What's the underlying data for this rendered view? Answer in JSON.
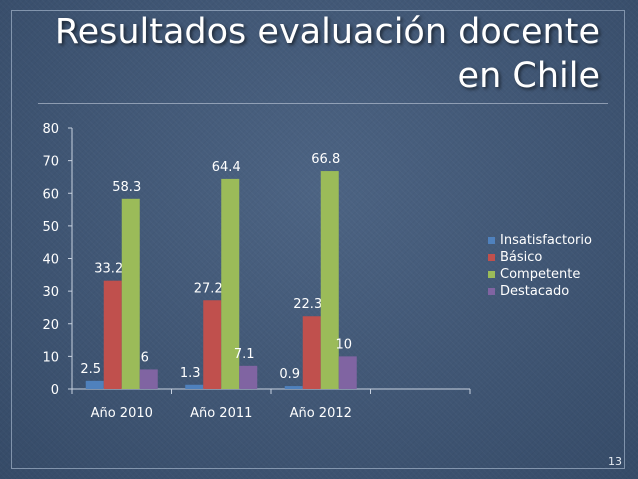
{
  "slide": {
    "title_line1": "Resultados evaluación docente",
    "title_line2": "en Chile",
    "page_number": "13"
  },
  "chart_data": {
    "type": "bar",
    "categories": [
      "Año 2010",
      "Año 2011",
      "Año 2012",
      ""
    ],
    "series": [
      {
        "name": "Insatisfactorio",
        "values": [
          2.5,
          1.3,
          0.9,
          null
        ],
        "labels": [
          "2.5",
          "1.3",
          "0.9",
          ""
        ],
        "color": "#4f81bd"
      },
      {
        "name": "Básico",
        "values": [
          33.2,
          27.2,
          22.3,
          null
        ],
        "labels": [
          "33.2",
          "27.2",
          "22.3",
          ""
        ],
        "color": "#c0504d"
      },
      {
        "name": "Competente",
        "values": [
          58.3,
          64.4,
          66.8,
          null
        ],
        "labels": [
          "58.3",
          "64.4",
          "66.8",
          ""
        ],
        "color": "#9bbb59"
      },
      {
        "name": "Destacado",
        "values": [
          6,
          7.1,
          10,
          null
        ],
        "labels": [
          "6",
          "7.1",
          "10",
          ""
        ],
        "color": "#8064a2"
      }
    ],
    "ylim": [
      0,
      80
    ],
    "yticks": [
      0,
      10,
      20,
      30,
      40,
      50,
      60,
      70,
      80
    ],
    "xlabel": "",
    "ylabel": "",
    "legend_position": "right",
    "grid": false
  }
}
